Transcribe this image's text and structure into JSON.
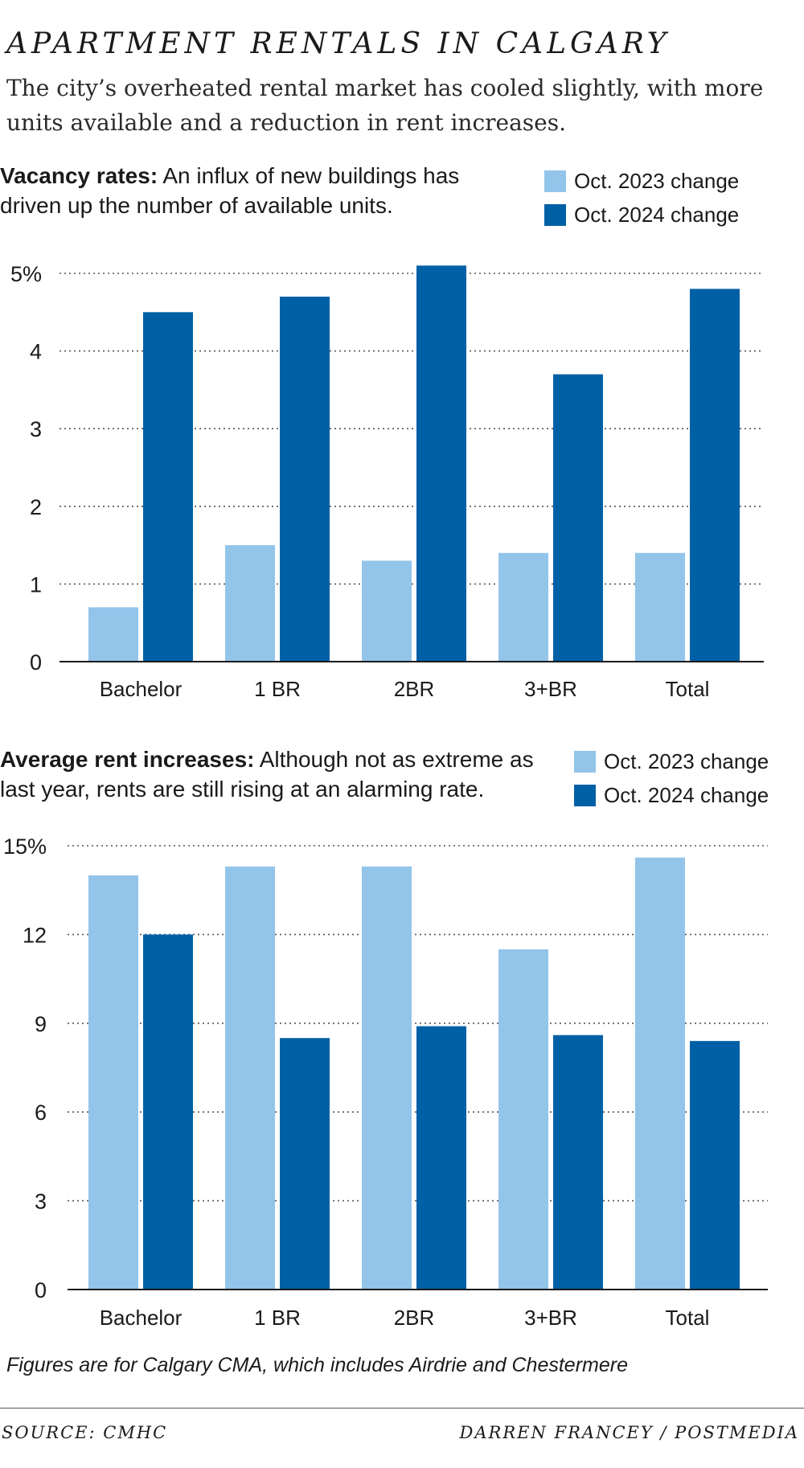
{
  "header": {
    "title": "APARTMENT RENTALS IN CALGARY",
    "subtitle": "The city’s overheated rental market has cooled slightly, with more units available and a reduction in rent increases."
  },
  "colors": {
    "series_2023": "#93c4ea",
    "series_2024": "#0060a6",
    "grid": "#555555"
  },
  "sections": [
    {
      "head_bold": "Vacancy rates:",
      "head_text": " An influx of new buildings has driven up the number of available units.",
      "legend": [
        "Oct. 2023 change",
        "Oct. 2024 change"
      ]
    },
    {
      "head_bold": "Average rent increases:",
      "head_text": " Although not as extreme as last year, rents are still rising at an alarming rate.",
      "legend": [
        "Oct. 2023 change",
        "Oct. 2024 change"
      ]
    }
  ],
  "chart_data": [
    {
      "type": "bar",
      "title": "Vacancy rates",
      "categories": [
        "Bachelor",
        "1 BR",
        "2BR",
        "3+BR",
        "Total"
      ],
      "series": [
        {
          "name": "Oct. 2023 change",
          "values": [
            0.7,
            1.5,
            1.3,
            1.4,
            1.4
          ]
        },
        {
          "name": "Oct. 2024 change",
          "values": [
            4.5,
            4.7,
            5.1,
            3.7,
            4.8
          ]
        }
      ],
      "ylim": [
        0,
        5
      ],
      "yticks": [
        0,
        1,
        2,
        3,
        4,
        5
      ],
      "ytick_labels": [
        "0",
        "1",
        "2",
        "3",
        "4",
        "5%"
      ]
    },
    {
      "type": "bar",
      "title": "Average rent increases",
      "categories": [
        "Bachelor",
        "1 BR",
        "2BR",
        "3+BR",
        "Total"
      ],
      "series": [
        {
          "name": "Oct. 2023 change",
          "values": [
            14.0,
            14.3,
            14.3,
            11.5,
            14.6
          ]
        },
        {
          "name": "Oct. 2024 change",
          "values": [
            12.0,
            8.5,
            8.9,
            8.6,
            8.4
          ]
        }
      ],
      "ylim": [
        0,
        15
      ],
      "yticks": [
        0,
        3,
        6,
        9,
        12,
        15
      ],
      "ytick_labels": [
        "0",
        "3",
        "6",
        "9",
        "12",
        "15%"
      ]
    }
  ],
  "footer": {
    "note": "Figures are for Calgary CMA, which includes Airdrie and Chestermere",
    "source": "SOURCE: CMHC",
    "credit": "DARREN FRANCEY / POSTMEDIA"
  }
}
